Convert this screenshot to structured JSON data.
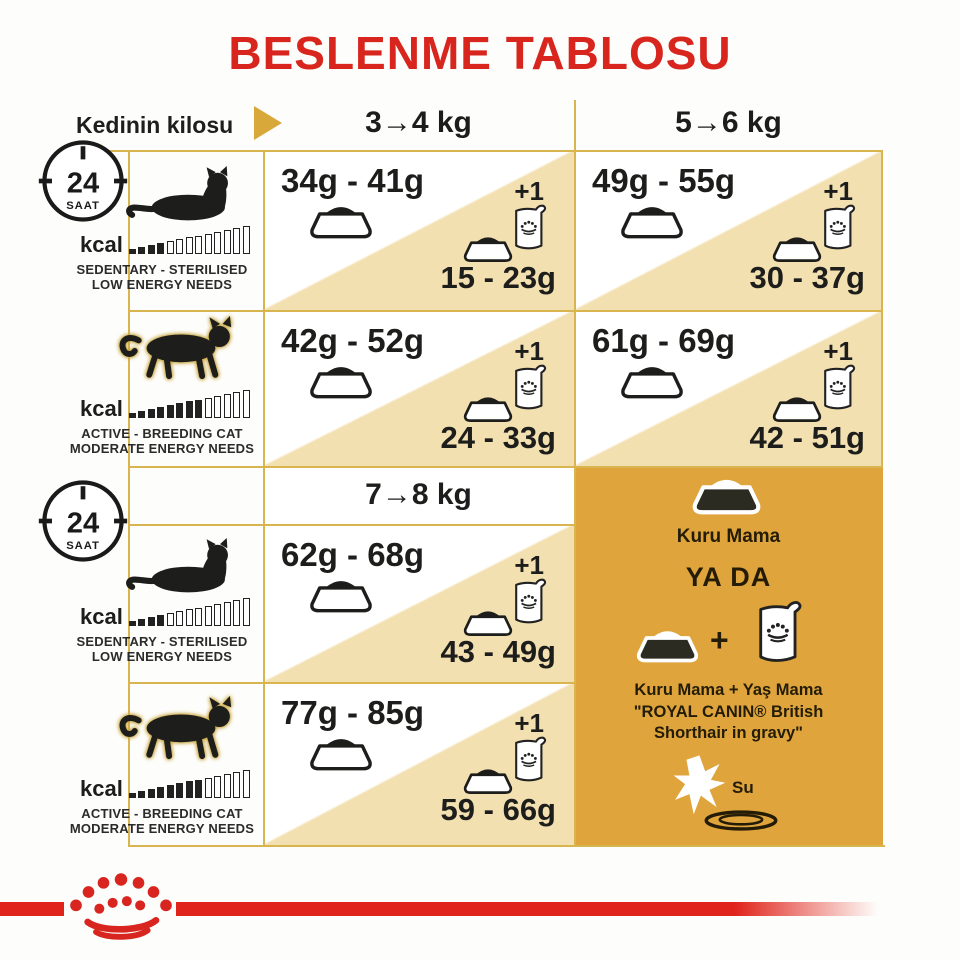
{
  "title": "BESLENME TABLOSU",
  "header": {
    "weight_label": "Kedinin kilosu",
    "col_3_4": "3→4 kg",
    "col_5_6": "5→6 kg",
    "col_7_8": "7→8 kg"
  },
  "clock": {
    "hours": "24",
    "unit": "SAAT"
  },
  "profiles": {
    "sedentary": {
      "kcal_label": "kcal",
      "bars": "4/13",
      "line1": "SEDENTARY - STERILISED",
      "line2": "LOW ENERGY NEEDS"
    },
    "active": {
      "kcal_label": "kcal",
      "bars": "8/13",
      "line1": "ACTIVE - BREEDING CAT",
      "line2": "MODERATE ENERGY NEEDS"
    }
  },
  "cells": [
    {
      "dry": "34g - 41g",
      "plus": "+1",
      "mixed": "15 - 23g"
    },
    {
      "dry": "49g - 55g",
      "plus": "+1",
      "mixed": "30 - 37g"
    },
    {
      "dry": "42g - 52g",
      "plus": "+1",
      "mixed": "24 - 33g"
    },
    {
      "dry": "61g - 69g",
      "plus": "+1",
      "mixed": "42 - 51g"
    },
    {
      "dry": "62g - 68g",
      "plus": "+1",
      "mixed": "43 - 49g"
    },
    {
      "dry": "77g - 85g",
      "plus": "+1",
      "mixed": "59 - 66g"
    }
  ],
  "panel": {
    "dry_label": "Kuru Mama",
    "or_label": "YA DA",
    "plus_sign": "+",
    "mixed_caption": "Kuru Mama + Yaş Mama\n\"ROYAL CANIN® British\nShorthair in gravy\"",
    "water_label": "Su"
  },
  "colors": {
    "accent_red": "#d8261f",
    "gold_border": "#d9b550",
    "panel_gold": "#dfa53c",
    "cell_tan": "#f3e0b0"
  },
  "chart_data": {
    "type": "table",
    "title": "BESLENME TABLOSU",
    "columns": [
      "3→4 kg",
      "5→6 kg",
      "7→8 kg"
    ],
    "legend": {
      "dry_only": "Kuru Mama",
      "or": "YA DA",
      "dry_plus_wet": "Kuru Mama + Yaş Mama \"ROYAL CANIN® British Shorthair in gravy\"",
      "water": "Su",
      "period": "24 SAAT"
    },
    "rows": [
      {
        "profile": "SEDENTARY - STERILISED LOW ENERGY NEEDS",
        "weight": "3→4 kg",
        "dry_only": "34g - 41g",
        "dry_with_1_pouch": "15 - 23g"
      },
      {
        "profile": "SEDENTARY - STERILISED LOW ENERGY NEEDS",
        "weight": "5→6 kg",
        "dry_only": "49g - 55g",
        "dry_with_1_pouch": "30 - 37g"
      },
      {
        "profile": "ACTIVE - BREEDING CAT MODERATE ENERGY NEEDS",
        "weight": "3→4 kg",
        "dry_only": "42g - 52g",
        "dry_with_1_pouch": "24 - 33g"
      },
      {
        "profile": "ACTIVE - BREEDING CAT MODERATE ENERGY NEEDS",
        "weight": "5→6 kg",
        "dry_only": "61g - 69g",
        "dry_with_1_pouch": "42 - 51g"
      },
      {
        "profile": "SEDENTARY - STERILISED LOW ENERGY NEEDS",
        "weight": "7→8 kg",
        "dry_only": "62g - 68g",
        "dry_with_1_pouch": "43 - 49g"
      },
      {
        "profile": "ACTIVE - BREEDING CAT MODERATE ENERGY NEEDS",
        "weight": "7→8 kg",
        "dry_only": "77g - 85g",
        "dry_with_1_pouch": "59 - 66g"
      }
    ]
  }
}
